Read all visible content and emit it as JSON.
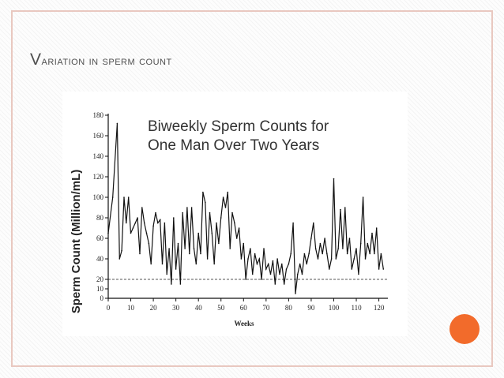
{
  "slide": {
    "title_first": "V",
    "title_rest": "ARIATION IN SPERM COUNT",
    "accent_color": "#f26b2b",
    "border_color": "#e9c8c0"
  },
  "chart_data": {
    "type": "line",
    "title_line1": "Biweekly Sperm Counts for",
    "title_line2": "One Man Over Two Years",
    "xlabel": "Weeks",
    "ylabel": "Sperm Count (Million/mL)",
    "xlim": [
      0,
      124
    ],
    "ylim": [
      0,
      180
    ],
    "xticks": [
      0,
      10,
      20,
      30,
      40,
      50,
      60,
      70,
      80,
      90,
      100,
      110,
      120
    ],
    "yticks": [
      0,
      10,
      20,
      40,
      60,
      80,
      100,
      120,
      140,
      160,
      180
    ],
    "reference_line": {
      "y": 20,
      "style": "dashed"
    },
    "series": [
      {
        "x": [
          0,
          2,
          4,
          5,
          6,
          7,
          8,
          9,
          10,
          11,
          12,
          13,
          14,
          15,
          16,
          17,
          18,
          19,
          20,
          21,
          22,
          23,
          24,
          25,
          26,
          27,
          28,
          29,
          30,
          31,
          32,
          33,
          34,
          35,
          36,
          37,
          38,
          39,
          40,
          41,
          42,
          43,
          44,
          45,
          46,
          47,
          48,
          49,
          50,
          51,
          52,
          53,
          54,
          55,
          56,
          57,
          58,
          59,
          60,
          61,
          62,
          63,
          64,
          65,
          66,
          67,
          68,
          69,
          70,
          71,
          72,
          73,
          74,
          75,
          76,
          77,
          78,
          79,
          80,
          81,
          82,
          83,
          84,
          85,
          86,
          87,
          88,
          89,
          90,
          91,
          92,
          93,
          94,
          95,
          96,
          97,
          98,
          99,
          100,
          101,
          102,
          103,
          104,
          105,
          106,
          107,
          108,
          109,
          110,
          111,
          112,
          113,
          114,
          115,
          116,
          117,
          118,
          119,
          120,
          121,
          122
        ],
        "values": [
          65,
          100,
          172,
          40,
          48,
          100,
          75,
          100,
          65,
          70,
          75,
          80,
          45,
          90,
          75,
          65,
          55,
          35,
          72,
          85,
          75,
          78,
          35,
          75,
          25,
          50,
          15,
          80,
          30,
          55,
          15,
          85,
          50,
          90,
          45,
          90,
          50,
          35,
          65,
          45,
          105,
          95,
          40,
          85,
          65,
          35,
          75,
          55,
          80,
          100,
          90,
          105,
          50,
          85,
          75,
          60,
          70,
          40,
          55,
          20,
          40,
          50,
          25,
          45,
          35,
          40,
          20,
          50,
          30,
          35,
          25,
          38,
          15,
          40,
          25,
          35,
          15,
          30,
          35,
          45,
          75,
          5,
          25,
          35,
          25,
          45,
          35,
          45,
          60,
          75,
          50,
          40,
          55,
          45,
          60,
          45,
          30,
          40,
          118,
          40,
          50,
          88,
          50,
          90,
          45,
          60,
          30,
          40,
          50,
          25,
          55,
          100,
          40,
          55,
          45,
          65,
          45,
          70,
          30,
          45,
          30
        ]
      }
    ]
  }
}
